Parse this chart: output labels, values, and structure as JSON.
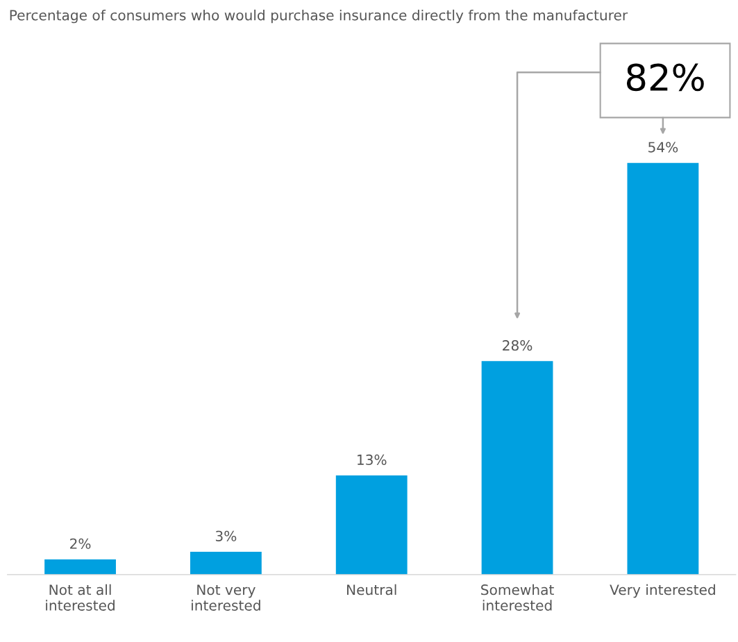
{
  "chart_data": {
    "type": "bar",
    "title": "Percentage of consumers who would purchase insurance directly from the manufacturer",
    "categories": [
      "Not at all\ninterested",
      "Not very\ninterested",
      "Neutral",
      "Somewhat\ninterested",
      "Very interested"
    ],
    "values": [
      2,
      3,
      13,
      28,
      54
    ],
    "value_labels": [
      "2%",
      "3%",
      "13%",
      "28%",
      "54%"
    ],
    "color": "#00a0e0",
    "annotations": [
      "82%"
    ],
    "grid": false,
    "legend": false
  }
}
